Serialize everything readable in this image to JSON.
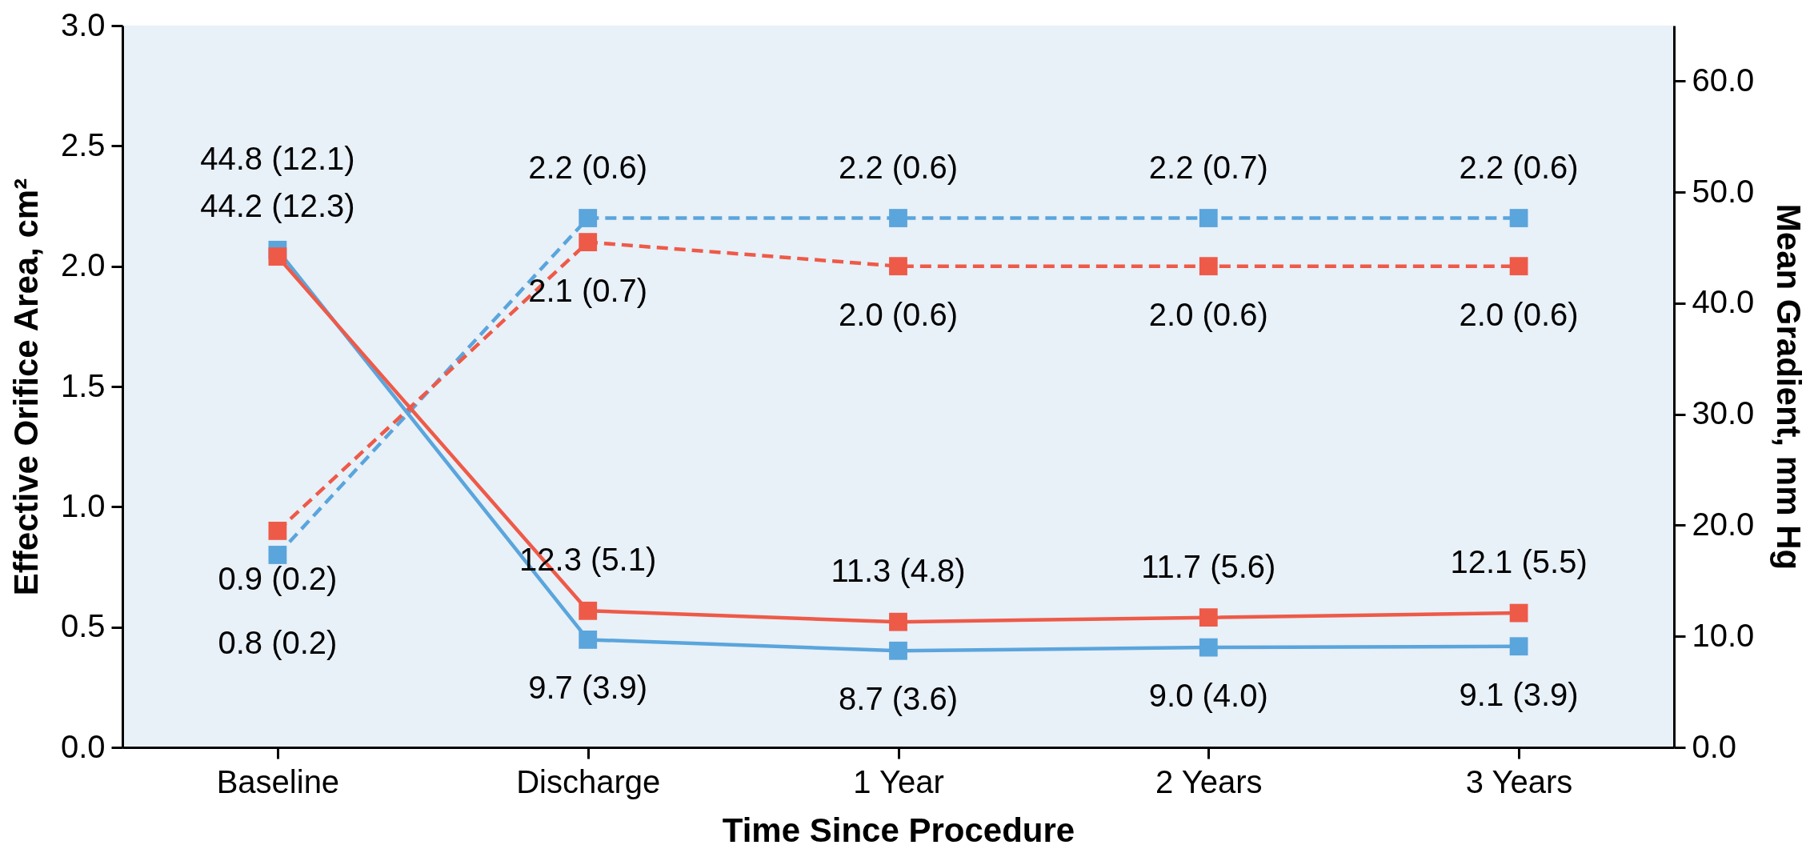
{
  "chart_data": {
    "type": "line",
    "xlabel": "Time Since Procedure",
    "ylabel": "Effective Orifice Area, cm²",
    "y2label": "Mean Gradient, mm Hg",
    "categories": [
      "Baseline",
      "Discharge",
      "1 Year",
      "2 Years",
      "3 Years"
    ],
    "series": [
      {
        "color": "#5aa5dc",
        "line_style": "dashed",
        "values": [
          0.8,
          2.2,
          2.2,
          2.2,
          2.2
        ],
        "value_labels": [
          "0.8 (0.2)",
          "2.2 (0.6)",
          "2.2 (0.6)",
          "2.2 (0.7)",
          "2.2 (0.6)"
        ]
      },
      {
        "color": "#ee5a48",
        "line_style": "dashed",
        "values": [
          0.9,
          2.1,
          2.0,
          2.0,
          2.0
        ],
        "value_labels": [
          "0.9 (0.2)",
          "2.1 (0.7)",
          "2.0 (0.6)",
          "2.0 (0.6)",
          "2.0 (0.6)"
        ]
      },
      {
        "color": "#5aa5dc",
        "line_style": "solid",
        "axis": "y2",
        "values": [
          44.8,
          9.7,
          8.7,
          9.0,
          9.1
        ],
        "value_labels": [
          "44.8 (12.1)",
          "9.7 (3.9)",
          "8.7 (3.6)",
          "9.0 (4.0)",
          "9.1 (3.9)"
        ]
      },
      {
        "color": "#ee5a48",
        "line_style": "solid",
        "axis": "y2",
        "values": [
          44.2,
          12.3,
          11.3,
          11.7,
          12.1
        ],
        "value_labels": [
          "44.2 (12.3)",
          "12.3 (5.1)",
          "11.3 (4.8)",
          "11.7 (5.6)",
          "12.1 (5.5)"
        ]
      }
    ],
    "ylim": [
      0,
      3
    ],
    "yticks": [
      {
        "value": 0,
        "label": "0.0"
      },
      {
        "value": 0.5,
        "label": "0.5"
      },
      {
        "value": 1,
        "label": "1.0"
      },
      {
        "value": 1.5,
        "label": "1.5"
      },
      {
        "value": 2,
        "label": "2.0"
      },
      {
        "value": 2.5,
        "label": "2.5"
      },
      {
        "value": 3,
        "label": "3.0"
      }
    ],
    "y2lim": [
      0,
      65
    ],
    "y2ticks": [
      {
        "value": 0,
        "label": "0.0"
      },
      {
        "value": 10,
        "label": "10.0"
      },
      {
        "value": 20,
        "label": "20.0"
      },
      {
        "value": 30,
        "label": "30.0"
      },
      {
        "value": 40,
        "label": "40.0"
      },
      {
        "value": 50,
        "label": "50.0"
      },
      {
        "value": 60,
        "label": "60.0"
      }
    ],
    "marker": "square",
    "grid": false
  }
}
